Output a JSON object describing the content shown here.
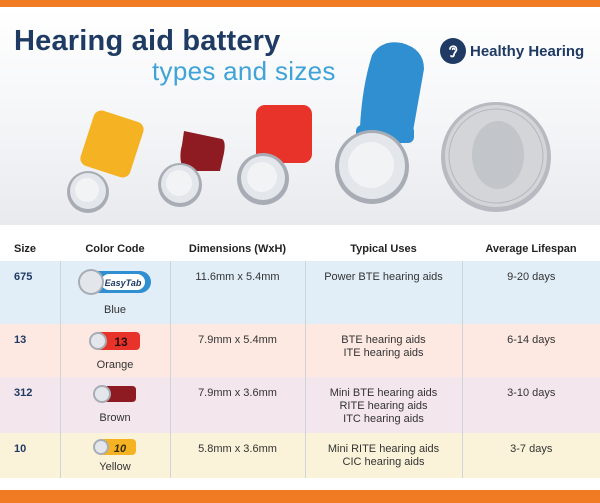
{
  "header": {
    "title_line1": "Hearing aid battery",
    "title_line2": "types and sizes",
    "brand_name": "Healthy Hearing",
    "brand_icon": "ear-icon"
  },
  "colors": {
    "orange_bar": "#f07b22",
    "title_navy": "#1f3b63",
    "subtitle_blue": "#3fa3d8",
    "blue_tab": "#2f8fd0",
    "orange_tab": "#e8332a",
    "brown_tab": "#8e1a22",
    "yellow_tab": "#f5b324"
  },
  "table": {
    "columns": [
      "Size",
      "Color Code",
      "Dimensions (WxH)",
      "Typical Uses",
      "Average Lifespan"
    ],
    "rows": [
      {
        "size": "675",
        "color": "Blue",
        "tab_label": "EasyTab",
        "dimensions": "11.6mm x 5.4mm",
        "uses": [
          "Power BTE hearing aids"
        ],
        "lifespan": "9-20 days"
      },
      {
        "size": "13",
        "color": "Orange",
        "tab_label": "13",
        "dimensions": "7.9mm x 5.4mm",
        "uses": [
          "BTE hearing aids",
          "ITE hearing aids"
        ],
        "lifespan": "6-14 days"
      },
      {
        "size": "312",
        "color": "Brown",
        "tab_label": "",
        "dimensions": "7.9mm x 3.6mm",
        "uses": [
          "Mini BTE hearing aids",
          "RITE hearing aids",
          "ITC hearing aids"
        ],
        "lifespan": "3-10 days"
      },
      {
        "size": "10",
        "color": "Yellow",
        "tab_label": "10",
        "dimensions": "5.8mm x 3.6mm",
        "uses": [
          "Mini RITE hearing aids",
          "CIC hearing aids"
        ],
        "lifespan": "3-7 days"
      }
    ]
  }
}
